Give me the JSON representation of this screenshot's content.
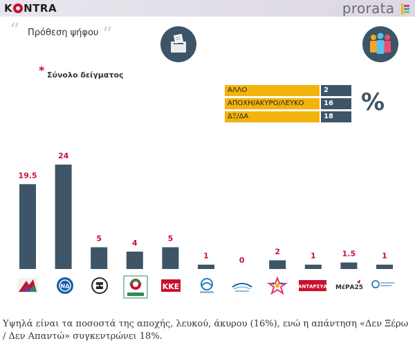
{
  "header": {
    "brand_left": "KONTRA",
    "brand_right": "prorata"
  },
  "question_title": "Πρόθεση ψήφου",
  "sample_label": "Σύνολο δείγματος",
  "percent_sign": "%",
  "info_table": [
    {
      "label": "ΑΛΛΟ",
      "value": "2"
    },
    {
      "label": "ΑΠΟΧΗ/ΑΚΥΡΟ/ΛΕΥΚΟ",
      "value": "16"
    },
    {
      "label": "ΔΞ/ΔΑ",
      "value": "18"
    }
  ],
  "colors": {
    "bar": "#3d5566",
    "value_label": "#c8102e",
    "table_label_bg": "#f3b30d",
    "table_value_bg": "#3d5566"
  },
  "chart_data": {
    "type": "bar",
    "categories": [
      "ΣΥΡΙΖΑ",
      "ΝΔ",
      "Χρυσή Αυγή",
      "Κίνημα Αλλαγής",
      "ΚΚΕ",
      "Ένωση Κεντρώων",
      "Ανεξάρτητοι Έλληνες",
      "Ποτάμι",
      "ΑΝΤΑΡΣΥΑ",
      "ΜέΡΑ25",
      "Ελληνική Λύση"
    ],
    "values": [
      19.5,
      24,
      5,
      4,
      5,
      1,
      0,
      2,
      1,
      1.5,
      1
    ],
    "value_labels": [
      "19.5",
      "24",
      "5",
      "4",
      "5",
      "1",
      "0",
      "2",
      "1",
      "1.5",
      "1"
    ],
    "title": "Πρόθεση ψήφου",
    "ylim": [
      0,
      24
    ],
    "grid": false
  },
  "party_logos": [
    "syriza-logo",
    "nd-logo",
    "golden-dawn-logo",
    "kinal-logo",
    "kke-logo",
    "enosi-kentroon-logo",
    "anel-logo",
    "potami-logo",
    "antarsya-logo",
    "mera25-logo",
    "elliniki-lysi-logo"
  ],
  "logo_text": {
    "kke": "ΚΚΕ",
    "antarsya": "ΑΝΤΑΡΣΥΑ",
    "mera25": "ΜέΡΑ25"
  },
  "caption": "Υψηλά είναι τα ποσοστά της αποχής, λευκού, άκυρου (16%), ενώ η απάντηση «Δεν Ξέρω / Δεν Απαντώ» συγκεντρώνει 18%."
}
